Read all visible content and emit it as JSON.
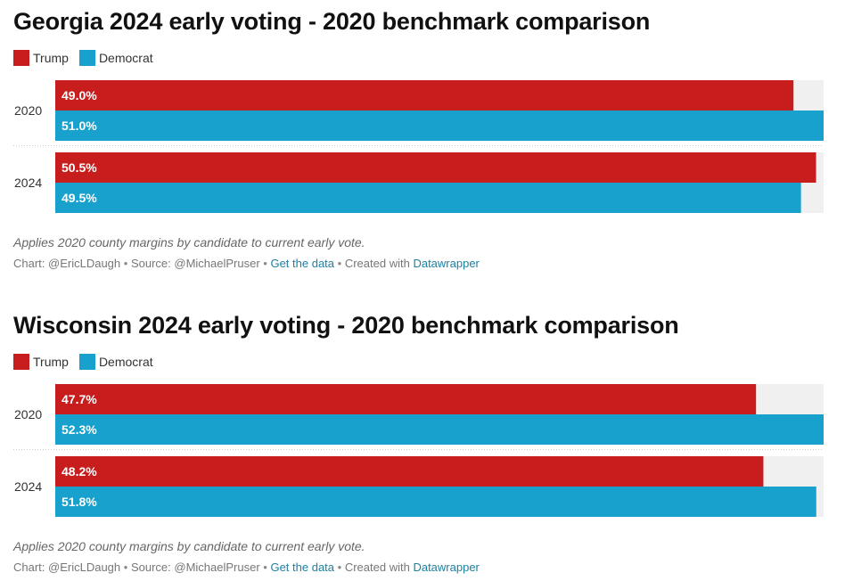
{
  "colors": {
    "trump": "#c71e1d",
    "democrat": "#18a1cd",
    "track": "#f0f0f0"
  },
  "charts": [
    {
      "title": "Georgia 2024 early voting - 2020 benchmark comparison",
      "legend": [
        "Trump",
        "Democrat"
      ],
      "note": "Applies 2020 county margins by candidate to current early vote.",
      "footer": {
        "chart_by": "Chart: @EricLDaugh",
        "source": "Source: @MichaelPruser",
        "data_link": "Get the data",
        "created_with": "Created with",
        "tool": "Datawrapper",
        "dot": "•"
      }
    },
    {
      "title": "Wisconsin 2024 early voting - 2020 benchmark comparison",
      "legend": [
        "Trump",
        "Democrat"
      ],
      "note": "Applies 2020 county margins by candidate to current early vote.",
      "footer": {
        "chart_by": "Chart: @EricLDaugh",
        "source": "Source: @MichaelPruser",
        "data_link": "Get the data",
        "created_with": "Created with",
        "tool": "Datawrapper",
        "dot": "•"
      }
    }
  ],
  "chart_data": [
    {
      "type": "bar",
      "orientation": "horizontal",
      "title": "Georgia 2024 early voting - 2020 benchmark comparison",
      "categories": [
        "2020",
        "2024"
      ],
      "series": [
        {
          "name": "Trump",
          "values": [
            49.0,
            50.5
          ],
          "labels": [
            "49.0%",
            "50.5%"
          ]
        },
        {
          "name": "Democrat",
          "values": [
            51.0,
            49.5
          ],
          "labels": [
            "51.0%",
            "49.5%"
          ]
        }
      ],
      "xlim": [
        0,
        51.0
      ],
      "legend": "top-left",
      "grid": false
    },
    {
      "type": "bar",
      "orientation": "horizontal",
      "title": "Wisconsin 2024 early voting - 2020 benchmark comparison",
      "categories": [
        "2020",
        "2024"
      ],
      "series": [
        {
          "name": "Trump",
          "values": [
            47.7,
            48.2
          ],
          "labels": [
            "47.7%",
            "48.2%"
          ]
        },
        {
          "name": "Democrat",
          "values": [
            52.3,
            51.8
          ],
          "labels": [
            "52.3%",
            "51.8%"
          ]
        }
      ],
      "xlim": [
        0,
        52.3
      ],
      "legend": "top-left",
      "grid": false
    }
  ]
}
